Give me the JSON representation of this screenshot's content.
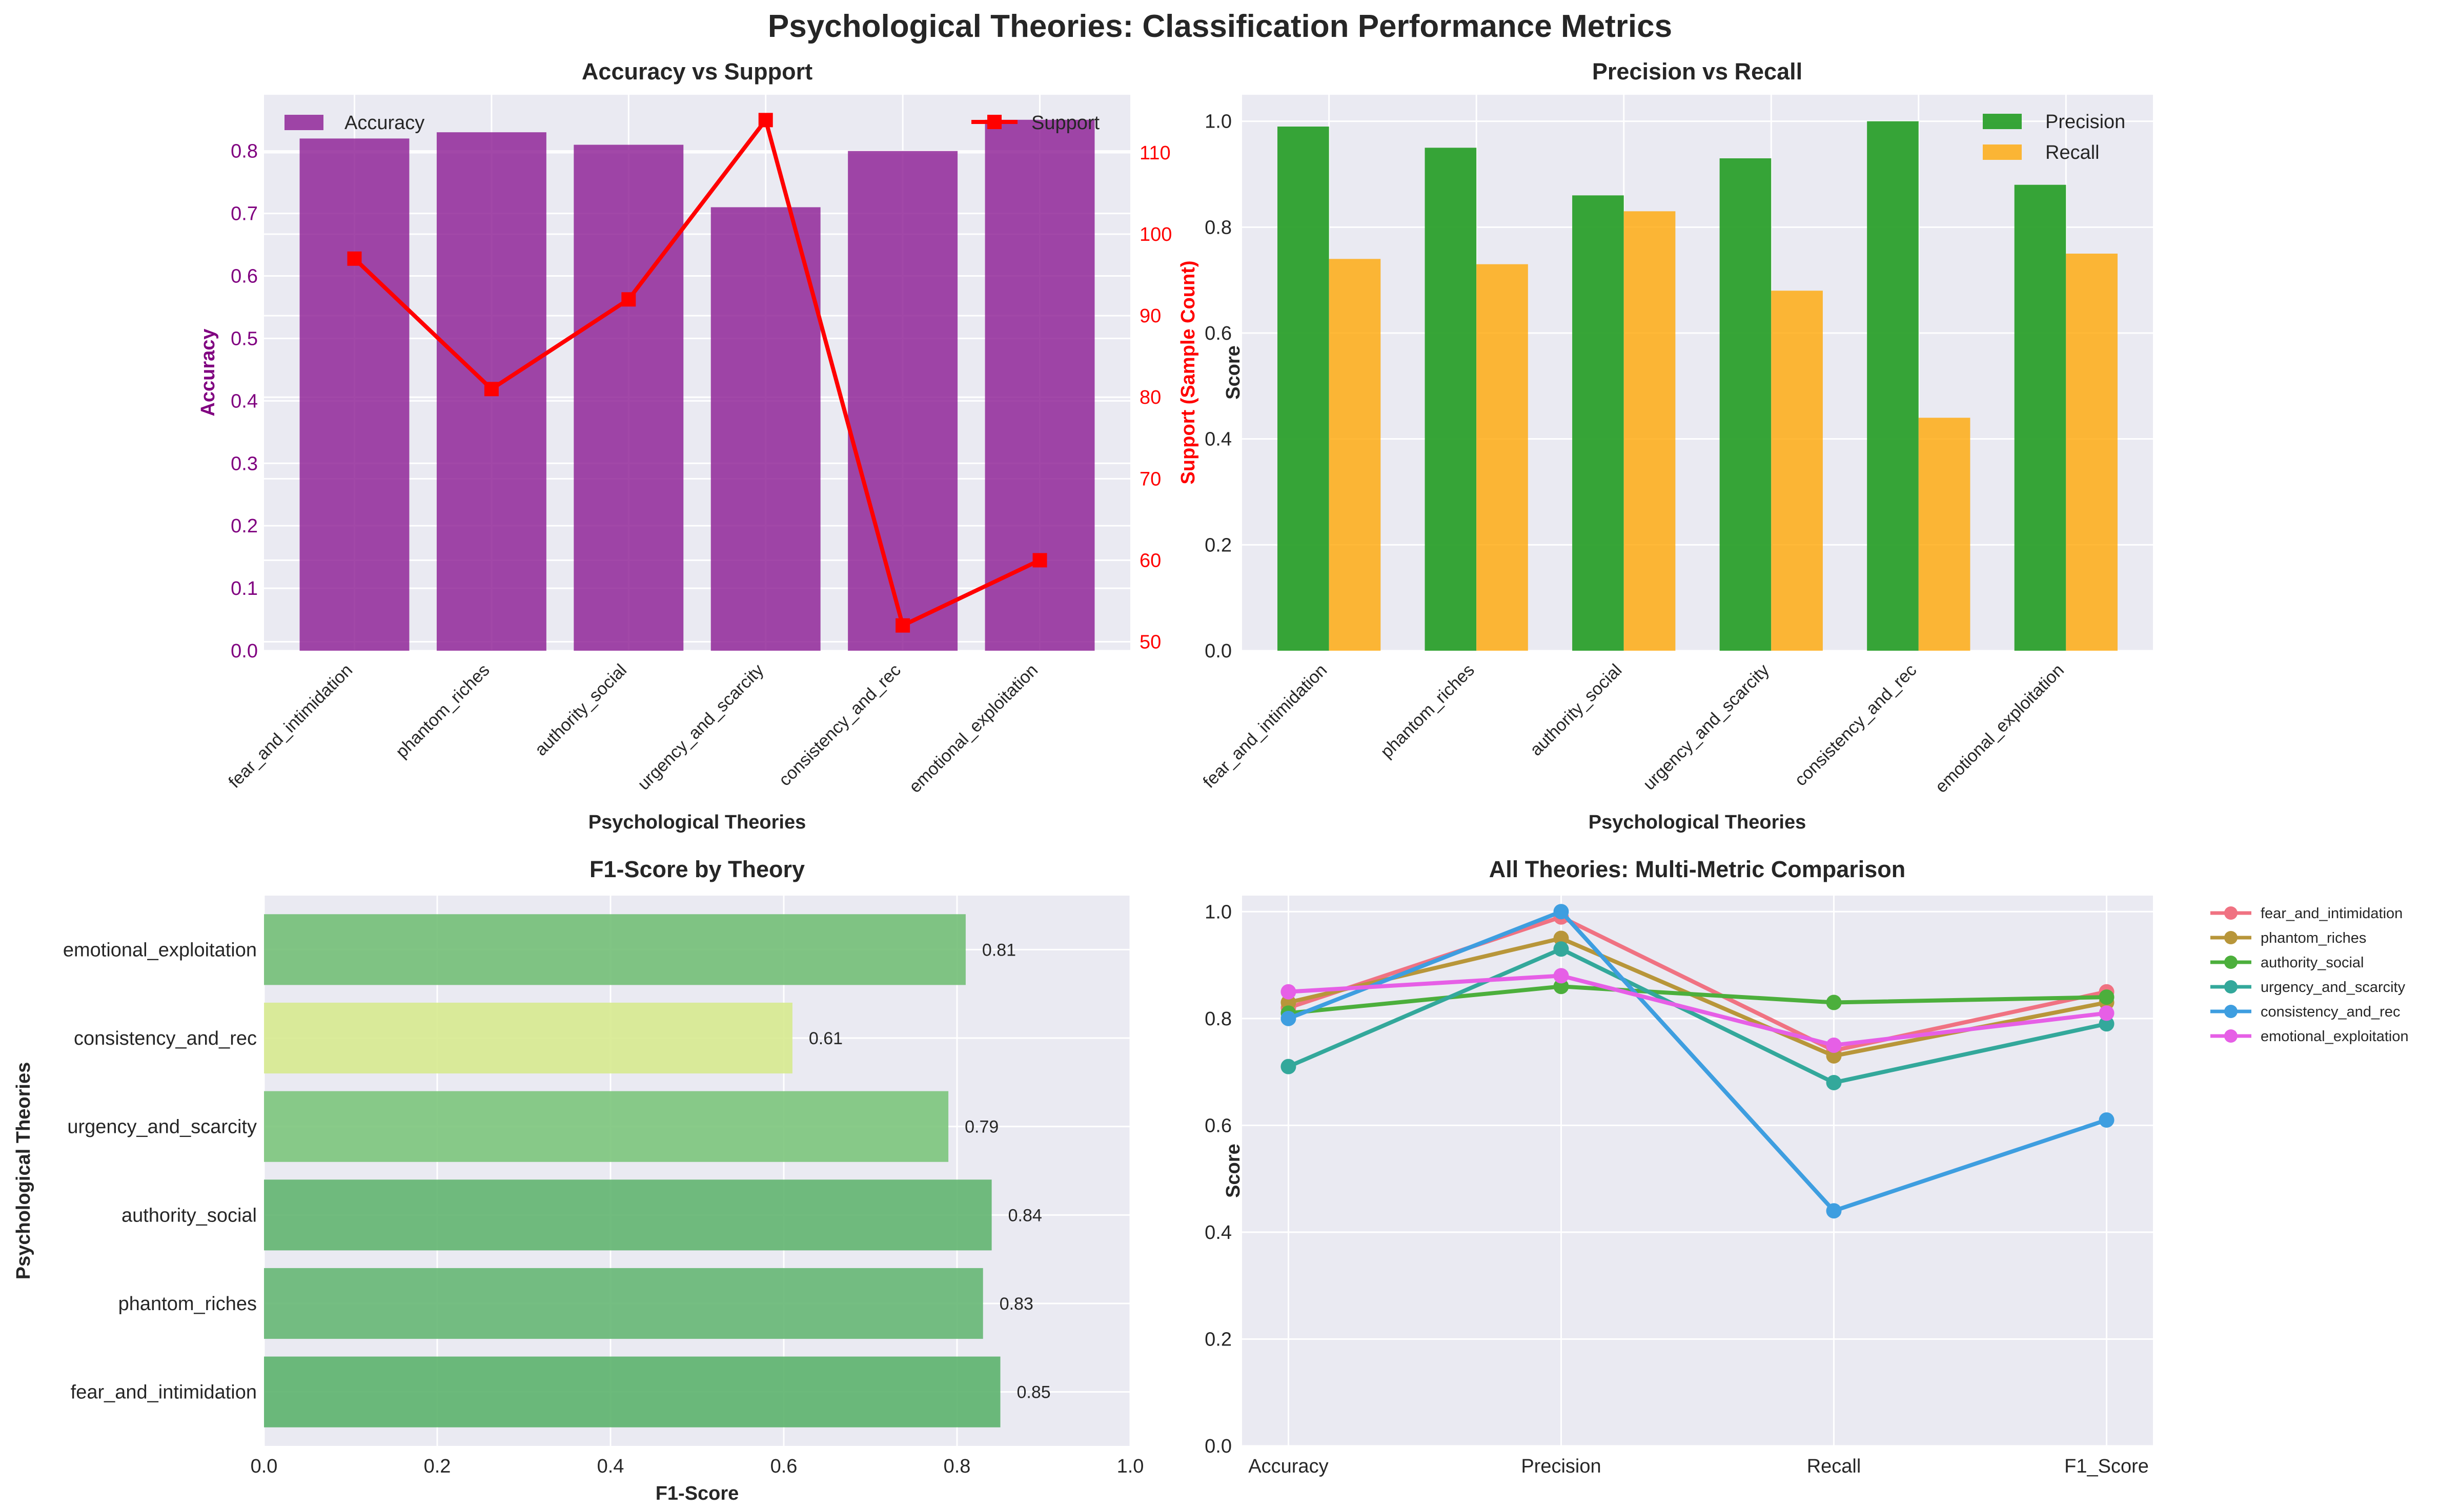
{
  "figure": {
    "title": "Psychological Theories: Classification Performance Metrics"
  },
  "colors": {
    "axes_bg": "#eaeaf2",
    "grid": "#ffffff",
    "accuracy_bar": "#8b1a92",
    "support_line": "#ff0000",
    "precision_bar": "#2ca02c",
    "recall_bar": "#ffa500",
    "text": "#262626"
  },
  "chart_data": [
    {
      "id": "accuracy-vs-support",
      "type": "bar",
      "title": "Accuracy vs Support",
      "xlabel": "Psychological Theories",
      "ylabel": "Accuracy",
      "y2label": "Support (Sample Count)",
      "categories": [
        "fear_and_intimidation",
        "phantom_riches",
        "authority_social",
        "urgency_and_scarcity",
        "consistency_and_rec",
        "emotional_exploitation"
      ],
      "series": [
        {
          "name": "Accuracy",
          "type": "bar",
          "axis": "left",
          "values": [
            0.82,
            0.83,
            0.81,
            0.71,
            0.8,
            0.85
          ]
        },
        {
          "name": "Support",
          "type": "line",
          "axis": "right",
          "marker": "square",
          "values": [
            97,
            81,
            92,
            114,
            52,
            60
          ]
        }
      ],
      "ylim": [
        0,
        0.89
      ],
      "yticks": [
        0.0,
        0.1,
        0.2,
        0.3,
        0.4,
        0.5,
        0.6,
        0.7,
        0.8
      ],
      "y2lim": [
        48.9,
        117.1
      ],
      "y2ticks": [
        50,
        60,
        70,
        80,
        90,
        100,
        110
      ],
      "legend": [
        "top-left",
        "top-right"
      ]
    },
    {
      "id": "precision-vs-recall",
      "type": "bar",
      "title": "Precision vs Recall",
      "xlabel": "Psychological Theories",
      "ylabel": "Score",
      "categories": [
        "fear_and_intimidation",
        "phantom_riches",
        "authority_social",
        "urgency_and_scarcity",
        "consistency_and_rec",
        "emotional_exploitation"
      ],
      "series": [
        {
          "name": "Precision",
          "values": [
            0.99,
            0.95,
            0.86,
            0.93,
            1.0,
            0.88
          ]
        },
        {
          "name": "Recall",
          "values": [
            0.74,
            0.73,
            0.83,
            0.68,
            0.44,
            0.75
          ]
        }
      ],
      "ylim": [
        0,
        1.05
      ],
      "yticks": [
        0.0,
        0.2,
        0.4,
        0.6,
        0.8,
        1.0
      ],
      "legend": "top-right"
    },
    {
      "id": "f1-by-theory",
      "type": "bar",
      "orientation": "horizontal",
      "title": "F1-Score by Theory",
      "xlabel": "F1-Score",
      "ylabel": "Psychological Theories",
      "categories": [
        "fear_and_intimidation",
        "phantom_riches",
        "authority_social",
        "urgency_and_scarcity",
        "consistency_and_rec",
        "emotional_exploitation"
      ],
      "values": [
        0.85,
        0.83,
        0.84,
        0.79,
        0.61,
        0.81
      ],
      "labels": [
        "0.85",
        "0.83",
        "0.84",
        "0.79",
        "0.61",
        "0.81"
      ],
      "bar_colors": [
        "#5cb26d",
        "#66b774",
        "#62b570",
        "#7cc57c",
        "#d7ea8f",
        "#73bf77"
      ],
      "xlim": [
        0,
        1.0
      ],
      "xticks": [
        0.0,
        0.2,
        0.4,
        0.6,
        0.8,
        1.0
      ]
    },
    {
      "id": "multi-metric",
      "type": "line",
      "title": "All Theories: Multi-Metric Comparison",
      "xlabel": "",
      "ylabel": "Score",
      "x": [
        "Accuracy",
        "Precision",
        "Recall",
        "F1_Score"
      ],
      "series": [
        {
          "name": "fear_and_intimidation",
          "color": "#f07282",
          "values": [
            0.82,
            0.99,
            0.74,
            0.85
          ]
        },
        {
          "name": "phantom_riches",
          "color": "#b8963a",
          "values": [
            0.83,
            0.95,
            0.73,
            0.83
          ]
        },
        {
          "name": "authority_social",
          "color": "#4caf3c",
          "values": [
            0.81,
            0.86,
            0.83,
            0.84
          ]
        },
        {
          "name": "urgency_and_scarcity",
          "color": "#33a89b",
          "values": [
            0.71,
            0.93,
            0.68,
            0.79
          ]
        },
        {
          "name": "consistency_and_rec",
          "color": "#3e9ee0",
          "values": [
            0.8,
            1.0,
            0.44,
            0.61
          ]
        },
        {
          "name": "emotional_exploitation",
          "color": "#e65fe6",
          "values": [
            0.85,
            0.88,
            0.75,
            0.81
          ]
        }
      ],
      "ylim": [
        0,
        1.03
      ],
      "yticks": [
        0.0,
        0.2,
        0.4,
        0.6,
        0.8,
        1.0
      ],
      "legend": "outside-right"
    }
  ]
}
